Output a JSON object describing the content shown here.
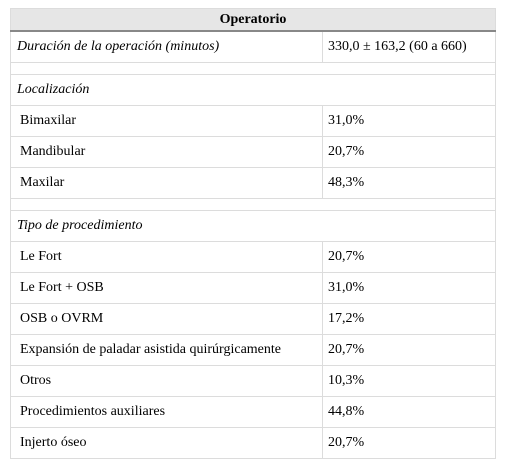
{
  "table": {
    "title": "Operatorio",
    "duration": {
      "label": "Duración de la operación (minutos)",
      "value": "330,0 ± 163,2 (60 a 660)"
    },
    "groups": [
      {
        "title": "Localización",
        "rows": [
          [
            "Bimaxilar",
            "31,0%"
          ],
          [
            "Mandibular",
            "20,7%"
          ],
          [
            "Maxilar",
            "48,3%"
          ]
        ]
      },
      {
        "title": "Tipo de procedimiento",
        "rows": [
          [
            "Le Fort",
            "20,7%"
          ],
          [
            "Le Fort + OSB",
            "31,0%"
          ],
          [
            "OSB o OVRM",
            "17,2%"
          ],
          [
            "Expansión de paladar asistida quirúrgicamente",
            "20,7%"
          ],
          [
            "Otros",
            "10,3%"
          ],
          [
            "Procedimientos auxiliares",
            "44,8%"
          ],
          [
            "Injerto óseo",
            "20,7%"
          ]
        ]
      }
    ]
  }
}
